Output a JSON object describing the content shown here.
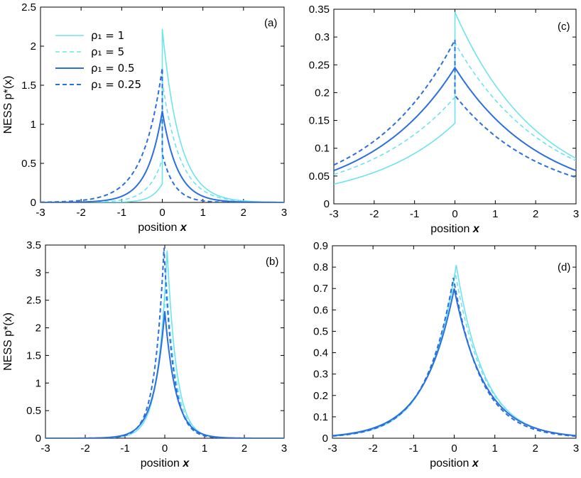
{
  "colors": {
    "light": "#6ee3ee",
    "dark": "#2b6fdf"
  },
  "legend": [
    {
      "label": "ρ₁ = 1",
      "color": "light",
      "dash": false
    },
    {
      "label": "ρ₁ = 5",
      "color": "light",
      "dash": true
    },
    {
      "label": "ρ₁ = 0.5",
      "color": "dark",
      "dash": false
    },
    {
      "label": "ρ₁ = 0.25",
      "color": "dark",
      "dash": true
    }
  ],
  "chart_data": [
    {
      "id": "a",
      "type": "line",
      "panel_label": "(a)",
      "xlabel": "position x",
      "ylabel": "NESS  p*(x)",
      "xlim": [
        -3,
        3
      ],
      "ylim": [
        0,
        2.5
      ],
      "xticks": [
        "-3",
        "-2",
        "-1",
        "0",
        "1",
        "2",
        "3"
      ],
      "yticks": [
        "0",
        "0.5",
        "1",
        "1.5",
        "2",
        "2.5"
      ],
      "series": [
        {
          "name": "ρ1 = 1",
          "color": "light",
          "dash": false,
          "left_peak": 0.24,
          "left_k": 3.9,
          "right_peak": 2.22,
          "right_k": 2.35
        },
        {
          "name": "ρ1 = 5",
          "color": "light",
          "dash": true,
          "left_peak": 0.55,
          "left_k": 2.9,
          "right_peak": 1.55,
          "right_k": 2.3
        },
        {
          "name": "ρ1 = 0.5",
          "color": "dark",
          "dash": false,
          "left_peak": 1.17,
          "left_k": 2.7,
          "right_peak": 1.17,
          "right_k": 2.7
        },
        {
          "name": "ρ1 = 0.25",
          "color": "dark",
          "dash": true,
          "left_peak": 1.72,
          "left_k": 2.1,
          "right_peak": 0.62,
          "right_k": 3.4
        }
      ]
    },
    {
      "id": "c",
      "type": "line",
      "panel_label": "(c)",
      "xlabel": "position x",
      "ylabel": "",
      "xlim": [
        -3,
        3
      ],
      "ylim": [
        0,
        0.35
      ],
      "xticks": [
        "-3",
        "-2",
        "-1",
        "0",
        "1",
        "2",
        "3"
      ],
      "yticks": [
        "0",
        "0.05",
        "0.1",
        "0.15",
        "0.2",
        "0.25",
        "0.3",
        "0.35"
      ],
      "series": [
        {
          "name": "ρ1 = 1",
          "color": "light",
          "dash": false,
          "left_peak": 0.145,
          "left_k": 0.47,
          "right_peak": 0.345,
          "right_k": 0.48
        },
        {
          "name": "ρ1 = 5",
          "color": "light",
          "dash": true,
          "left_peak": 0.192,
          "left_k": 0.43,
          "right_peak": 0.29,
          "right_k": 0.44
        },
        {
          "name": "ρ1 = 0.5",
          "color": "dark",
          "dash": false,
          "left_peak": 0.245,
          "left_k": 0.47,
          "right_peak": 0.245,
          "right_k": 0.47
        },
        {
          "name": "ρ1 = 0.25",
          "color": "dark",
          "dash": true,
          "left_peak": 0.295,
          "left_k": 0.48,
          "right_peak": 0.195,
          "right_k": 0.47
        }
      ]
    },
    {
      "id": "b",
      "type": "line",
      "panel_label": "(b)",
      "xlabel": "position x",
      "ylabel": "NESS  p*(x)",
      "xlim": [
        -3,
        3
      ],
      "ylim": [
        0,
        3.5
      ],
      "xticks": [
        "-3",
        "-2",
        "-1",
        "0",
        "1",
        "2",
        "3"
      ],
      "yticks": [
        "0",
        "0.5",
        "1",
        "1.5",
        "2",
        "2.5",
        "3",
        "3.5"
      ],
      "series": [
        {
          "name": "ρ1 = 1",
          "color": "light",
          "dash": false,
          "left_peak": 3.4,
          "left_k": 4.2,
          "right_peak": 3.4,
          "right_k": 4.2,
          "peak_x": 0.06
        },
        {
          "name": "ρ1 = 5",
          "color": "light",
          "dash": true,
          "left_peak": 2.85,
          "left_k": 4.0,
          "right_peak": 2.85,
          "right_k": 4.0,
          "peak_x": 0.04
        },
        {
          "name": "ρ1 = 0.5",
          "color": "dark",
          "dash": false,
          "left_peak": 2.3,
          "left_k": 3.6,
          "right_peak": 2.3,
          "right_k": 3.6,
          "peak_x": 0.0
        },
        {
          "name": "ρ1 = 0.25",
          "color": "dark",
          "dash": true,
          "left_peak": 3.45,
          "left_k": 4.3,
          "right_peak": 3.45,
          "right_k": 4.3,
          "peak_x": -0.02
        }
      ]
    },
    {
      "id": "d",
      "type": "line",
      "panel_label": "(d)",
      "xlabel": "position x",
      "ylabel": "",
      "xlim": [
        -3,
        3
      ],
      "ylim": [
        0,
        0.9
      ],
      "xticks": [
        "-3",
        "-2",
        "-1",
        "0",
        "1",
        "2",
        "3"
      ],
      "yticks": [
        "0",
        "0.1",
        "0.2",
        "0.3",
        "0.4",
        "0.5",
        "0.6",
        "0.7",
        "0.8",
        "0.9"
      ],
      "series": [
        {
          "name": "ρ1 = 1",
          "color": "light",
          "dash": false,
          "left_peak": 0.81,
          "left_k": 1.45,
          "right_peak": 0.81,
          "right_k": 1.45,
          "peak_x": 0.05
        },
        {
          "name": "ρ1 = 5",
          "color": "light",
          "dash": true,
          "left_peak": 0.77,
          "left_k": 1.4,
          "right_peak": 0.77,
          "right_k": 1.4,
          "peak_x": 0.03
        },
        {
          "name": "ρ1 = 0.5",
          "color": "dark",
          "dash": false,
          "left_peak": 0.7,
          "left_k": 1.35,
          "right_peak": 0.7,
          "right_k": 1.35,
          "peak_x": 0.0
        },
        {
          "name": "ρ1 = 0.25",
          "color": "dark",
          "dash": true,
          "left_peak": 0.75,
          "left_k": 1.45,
          "right_peak": 0.75,
          "right_k": 1.45,
          "peak_x": -0.02
        }
      ]
    }
  ]
}
